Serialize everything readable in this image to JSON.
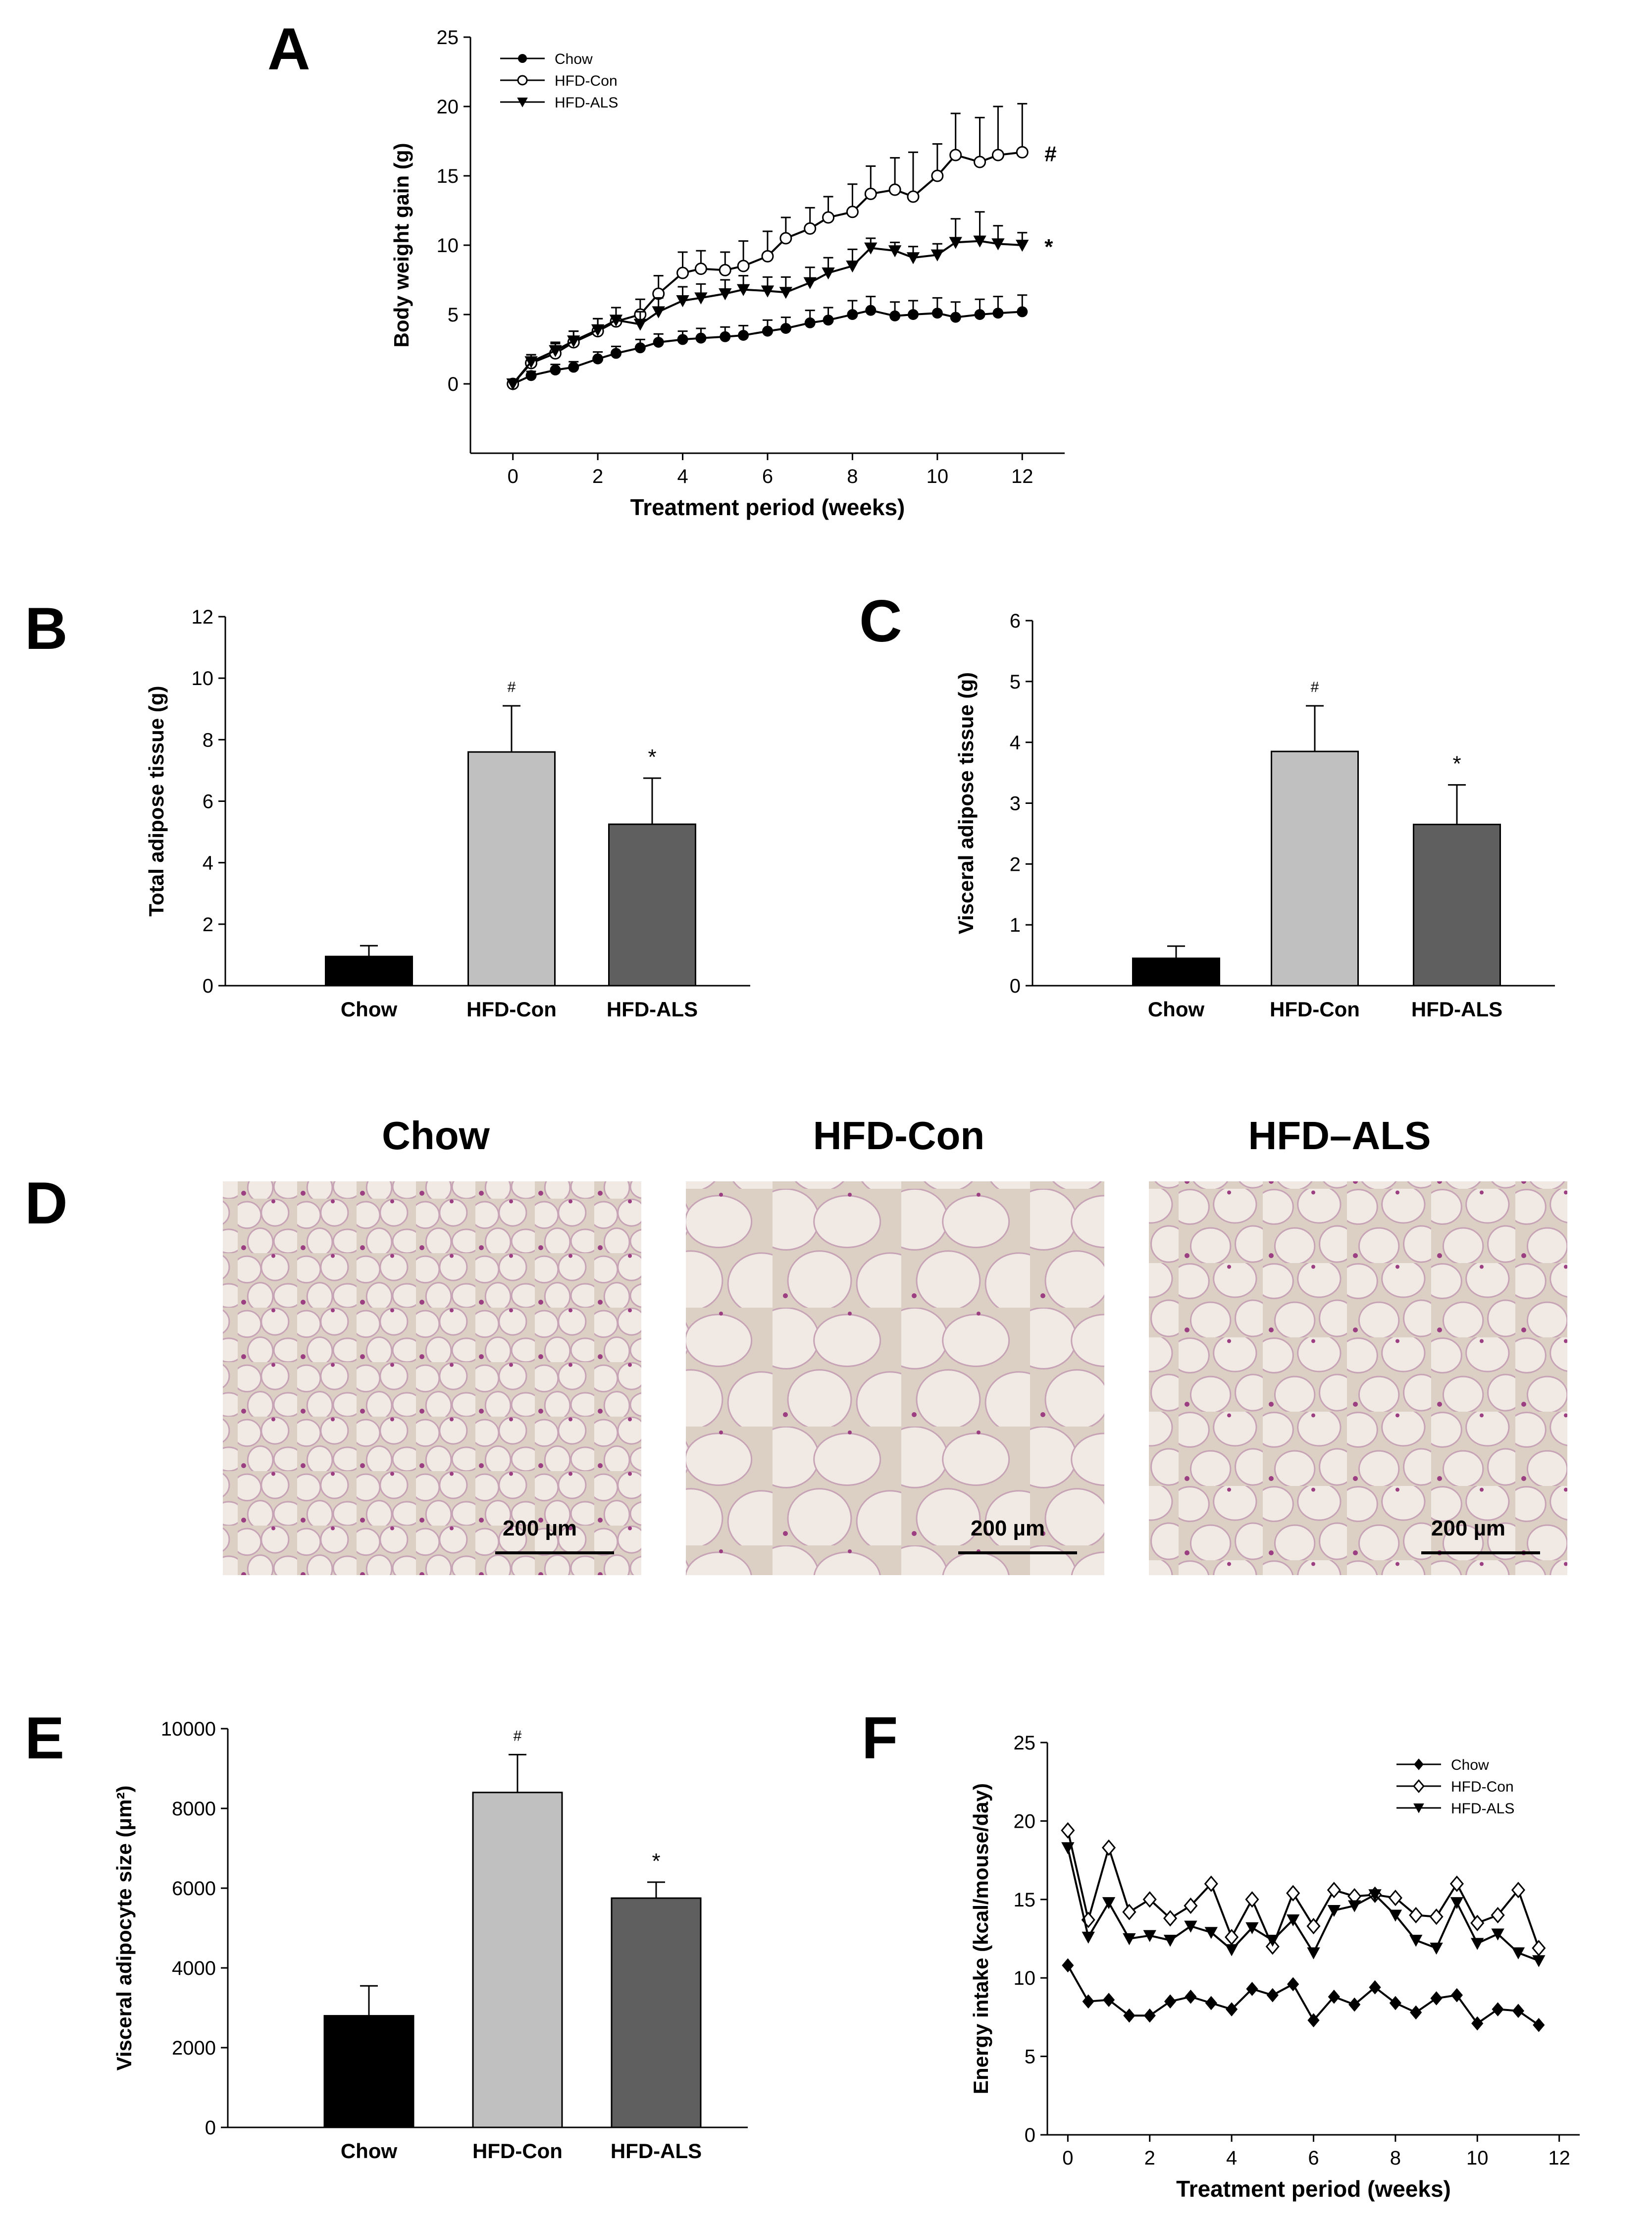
{
  "panels": {
    "A": "A",
    "B": "B",
    "C": "C",
    "D": "D",
    "E": "E",
    "F": "F"
  },
  "colors": {
    "chow": "#000000",
    "hfd_con": "#c0c0c0",
    "hfd_als": "#5f5f5f",
    "marker_outline": "#000000",
    "tissue_bg": "#dccfc4",
    "tissue_membrane": "#c7a3b6",
    "tissue_stain": "#9b3f82"
  },
  "micrographs": {
    "titles": [
      "Chow",
      "HFD-Con",
      "HFD–ALS"
    ],
    "scale_bar_label": "200 µm"
  },
  "chart_data": [
    {
      "panel": "A",
      "type": "line",
      "title": "",
      "xlabel": "Treatment period (weeks)",
      "ylabel": "Body weight gain (g)",
      "xlim": [
        -1,
        13
      ],
      "ylim": [
        -5,
        25
      ],
      "xticks": [
        0,
        2,
        4,
        6,
        8,
        10,
        12
      ],
      "yticks": [
        0,
        5,
        10,
        15,
        20,
        25
      ],
      "legend": "top-left",
      "x": [
        0,
        0.43,
        1,
        1.43,
        2,
        2.43,
        3,
        3.43,
        4,
        4.43,
        5,
        5.43,
        6,
        6.43,
        7,
        7.43,
        8,
        8.43,
        9,
        9.43,
        10,
        10.43,
        11,
        11.43,
        12
      ],
      "series": [
        {
          "name": "Chow",
          "marker": "filled-circle",
          "values": [
            0,
            0.6,
            1.0,
            1.2,
            1.8,
            2.2,
            2.6,
            3.0,
            3.2,
            3.3,
            3.4,
            3.5,
            3.8,
            4.0,
            4.4,
            4.6,
            5.0,
            5.3,
            4.9,
            5.0,
            5.1,
            4.8,
            5.0,
            5.1,
            5.2
          ],
          "errors": [
            0.3,
            0.3,
            0.4,
            0.4,
            0.5,
            0.5,
            0.6,
            0.6,
            0.6,
            0.7,
            0.7,
            0.7,
            0.8,
            0.8,
            0.9,
            0.9,
            1.0,
            1.0,
            1.0,
            1.0,
            1.1,
            1.1,
            1.1,
            1.2,
            1.2
          ]
        },
        {
          "name": "HFD-Con",
          "marker": "open-circle",
          "values": [
            0,
            1.5,
            2.2,
            3.0,
            3.8,
            4.5,
            5.0,
            6.5,
            8.0,
            8.3,
            8.2,
            8.5,
            9.2,
            10.5,
            11.2,
            12.0,
            12.4,
            13.7,
            14.0,
            13.5,
            15.0,
            16.5,
            16.0,
            16.5,
            16.7
          ],
          "errors": [
            0.3,
            0.6,
            0.7,
            0.8,
            0.9,
            1.0,
            1.1,
            1.3,
            1.5,
            1.3,
            1.3,
            1.8,
            1.8,
            1.5,
            1.5,
            1.5,
            2.0,
            2.0,
            2.3,
            3.2,
            2.3,
            3.0,
            3.2,
            3.5,
            3.5
          ]
        },
        {
          "name": "HFD-ALS",
          "marker": "filled-triangle-down",
          "values": [
            0,
            1.6,
            2.4,
            3.1,
            3.9,
            4.6,
            4.3,
            5.2,
            6.0,
            6.2,
            6.5,
            6.8,
            6.7,
            6.6,
            7.3,
            8.0,
            8.5,
            9.8,
            9.6,
            9.1,
            9.3,
            10.2,
            10.3,
            10.1,
            10.0
          ],
          "errors": [
            0.3,
            0.5,
            0.6,
            0.7,
            0.8,
            0.9,
            0.9,
            1.0,
            1.0,
            1.0,
            1.0,
            1.0,
            1.0,
            1.1,
            1.1,
            1.1,
            1.2,
            0.7,
            0.6,
            0.8,
            0.8,
            1.7,
            2.1,
            1.3,
            0.9
          ]
        }
      ],
      "annotations": [
        {
          "text": "#",
          "series": "HFD-Con"
        },
        {
          "text": "*",
          "series": "HFD-ALS"
        }
      ]
    },
    {
      "panel": "B",
      "type": "bar",
      "title": "",
      "xlabel": "",
      "ylabel": "Total adipose tissue (g)",
      "ylim": [
        0,
        12
      ],
      "yticks": [
        0,
        2,
        4,
        6,
        8,
        10,
        12
      ],
      "categories": [
        "Chow",
        "HFD-Con",
        "HFD-ALS"
      ],
      "values": [
        0.95,
        7.6,
        5.25
      ],
      "errors": [
        0.35,
        1.5,
        1.5
      ],
      "annotations": [
        "",
        "#",
        "*"
      ]
    },
    {
      "panel": "C",
      "type": "bar",
      "title": "",
      "xlabel": "",
      "ylabel": "Visceral adipose tissue (g)",
      "ylim": [
        0,
        6
      ],
      "yticks": [
        0,
        1,
        2,
        3,
        4,
        5,
        6
      ],
      "categories": [
        "Chow",
        "HFD-Con",
        "HFD-ALS"
      ],
      "values": [
        0.45,
        3.85,
        2.65
      ],
      "errors": [
        0.2,
        0.75,
        0.65
      ],
      "annotations": [
        "",
        "#",
        "*"
      ]
    },
    {
      "panel": "E",
      "type": "bar",
      "title": "",
      "xlabel": "",
      "ylabel": "Visceral adipocyte size (μm²)",
      "ylim": [
        0,
        10000
      ],
      "yticks": [
        0,
        2000,
        4000,
        6000,
        8000,
        10000
      ],
      "categories": [
        "Chow",
        "HFD-Con",
        "HFD-ALS"
      ],
      "values": [
        2800,
        8400,
        5750
      ],
      "errors": [
        750,
        950,
        400
      ],
      "annotations": [
        "",
        "#",
        "*"
      ]
    },
    {
      "panel": "F",
      "type": "line",
      "title": "",
      "xlabel": "Treatment period (weeks)",
      "ylabel": "Energy intake (kcal/mouse/day)",
      "xlim": [
        -0.5,
        12.5
      ],
      "ylim": [
        0,
        25
      ],
      "xticks": [
        0,
        2,
        4,
        6,
        8,
        10,
        12
      ],
      "yticks": [
        0,
        5,
        10,
        15,
        20,
        25
      ],
      "legend": "top-right",
      "x": [
        0,
        0.5,
        1,
        1.5,
        2,
        2.5,
        3,
        3.5,
        4,
        4.5,
        5,
        5.5,
        6,
        6.5,
        7,
        7.5,
        8,
        8.5,
        9,
        9.5,
        10,
        10.5,
        11,
        11.5
      ],
      "series": [
        {
          "name": "Chow",
          "marker": "filled-diamond",
          "values": [
            10.8,
            8.5,
            8.6,
            7.6,
            7.6,
            8.5,
            8.8,
            8.4,
            8.0,
            9.3,
            8.9,
            9.6,
            7.3,
            8.8,
            8.3,
            9.4,
            8.4,
            7.8,
            8.7,
            8.9,
            7.1,
            8.0,
            7.9,
            7.0
          ]
        },
        {
          "name": "HFD-Con",
          "marker": "open-diamond",
          "values": [
            19.4,
            13.7,
            18.3,
            14.2,
            15.0,
            13.8,
            14.6,
            16.0,
            12.6,
            15.0,
            12.0,
            15.4,
            13.3,
            15.6,
            15.2,
            15.3,
            15.1,
            14.0,
            13.9,
            16.0,
            13.5,
            14.0,
            15.6,
            11.9
          ]
        },
        {
          "name": "HFD-ALS",
          "marker": "filled-triangle-down",
          "values": [
            18.3,
            12.6,
            14.8,
            12.5,
            12.7,
            12.4,
            13.3,
            12.9,
            11.8,
            13.2,
            12.4,
            13.7,
            11.6,
            14.3,
            14.6,
            15.3,
            14.0,
            12.4,
            11.9,
            14.8,
            12.2,
            12.8,
            11.6,
            11.1
          ]
        }
      ]
    }
  ]
}
